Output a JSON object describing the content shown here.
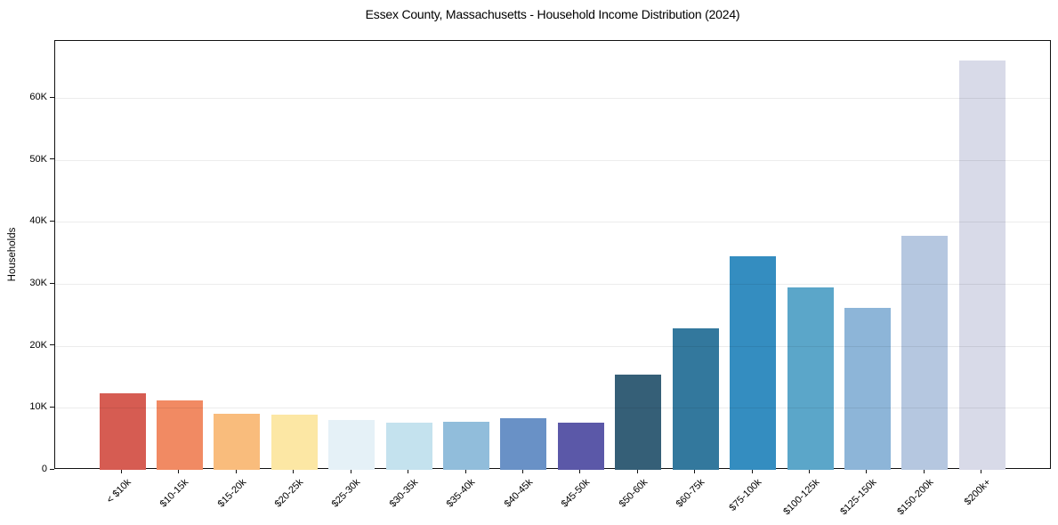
{
  "title": "Essex County, Massachusetts - Household Income Distribution (2024)",
  "chart_data": {
    "type": "bar",
    "title": "Essex County, Massachusetts - Household Income Distribution (2024)",
    "xlabel": "",
    "ylabel": "Households",
    "categories": [
      "< $10k",
      "$10-15k",
      "$15-20k",
      "$20-25k",
      "$25-30k",
      "$30-35k",
      "$35-40k",
      "$40-45k",
      "$45-50k",
      "$50-60k",
      "$60-75k",
      "$75-100k",
      "$100-125k",
      "$125-150k",
      "$150-200k",
      "$200k+"
    ],
    "values": [
      12400,
      11200,
      9050,
      8900,
      8100,
      7600,
      7800,
      8300,
      7600,
      15400,
      22800,
      34500,
      29500,
      26100,
      37800,
      66000
    ],
    "bar_colors": [
      "#d65c52",
      "#f18a63",
      "#f9bc7c",
      "#fce7a4",
      "#e5f1f7",
      "#c4e2ee",
      "#91bddb",
      "#6991c6",
      "#5b58a8",
      "#355f77",
      "#33789d",
      "#348dc0",
      "#5ba6c9",
      "#8db5d8",
      "#b5c7e0",
      "#d8dae8"
    ],
    "ytick_labels": [
      "0",
      "10K",
      "20K",
      "30K",
      "40K",
      "50K",
      "60K"
    ],
    "ytick_values": [
      0,
      10000,
      20000,
      30000,
      40000,
      50000,
      60000
    ],
    "ylim": [
      0,
      69200
    ],
    "grid": "horizontal",
    "legend": "none",
    "frame_color": "#111111",
    "background": "#ffffff"
  }
}
